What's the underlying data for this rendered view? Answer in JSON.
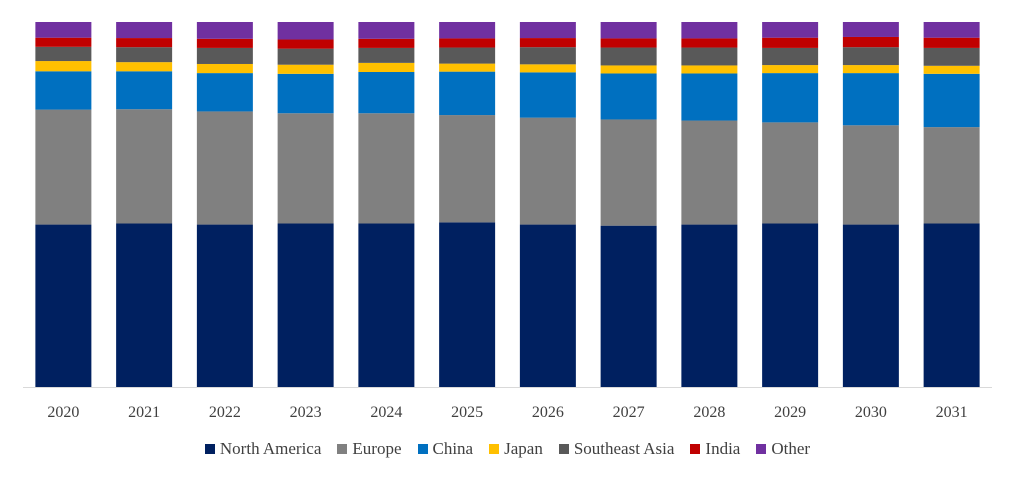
{
  "chart_data": {
    "type": "bar",
    "stacked": true,
    "normalized_percent": true,
    "title": "",
    "xlabel": "",
    "ylabel": "",
    "ylim": [
      0,
      100
    ],
    "grid": false,
    "legend_position": "bottom",
    "categories": [
      "2020",
      "2021",
      "2022",
      "2023",
      "2024",
      "2025",
      "2026",
      "2027",
      "2028",
      "2029",
      "2030",
      "2031"
    ],
    "series": [
      {
        "name": "North America",
        "color": "#002060",
        "values": [
          44.5,
          44.8,
          44.5,
          44.8,
          44.8,
          45.1,
          44.5,
          44.2,
          44.5,
          44.8,
          44.5,
          44.8
        ]
      },
      {
        "name": "Europe",
        "color": "#808080",
        "values": [
          31.5,
          31.3,
          31.0,
          30.2,
          30.2,
          29.4,
          29.3,
          29.1,
          28.5,
          27.7,
          27.2,
          26.4
        ]
      },
      {
        "name": "China",
        "color": "#0070C0",
        "values": [
          10.5,
          10.4,
          10.5,
          10.8,
          11.3,
          11.9,
          12.4,
          12.6,
          12.9,
          13.5,
          14.3,
          14.6
        ]
      },
      {
        "name": "Japan",
        "color": "#FFC000",
        "values": [
          2.8,
          2.5,
          2.5,
          2.5,
          2.5,
          2.2,
          2.2,
          2.2,
          2.2,
          2.2,
          2.2,
          2.2
        ]
      },
      {
        "name": "Southeast Asia",
        "color": "#595959",
        "values": [
          3.9,
          4.1,
          4.4,
          4.4,
          4.1,
          4.4,
          4.7,
          4.9,
          4.9,
          4.7,
          4.9,
          4.9
        ]
      },
      {
        "name": "India",
        "color": "#C00000",
        "values": [
          2.5,
          2.5,
          2.5,
          2.5,
          2.5,
          2.5,
          2.5,
          2.5,
          2.5,
          2.8,
          2.8,
          2.8
        ]
      },
      {
        "name": "Other",
        "color": "#7030A0",
        "values": [
          4.3,
          4.4,
          4.6,
          4.8,
          4.6,
          4.5,
          4.4,
          4.5,
          4.5,
          4.3,
          4.1,
          4.3
        ]
      }
    ]
  },
  "axis_color": "#D9D9D9",
  "text_color": "#404040"
}
